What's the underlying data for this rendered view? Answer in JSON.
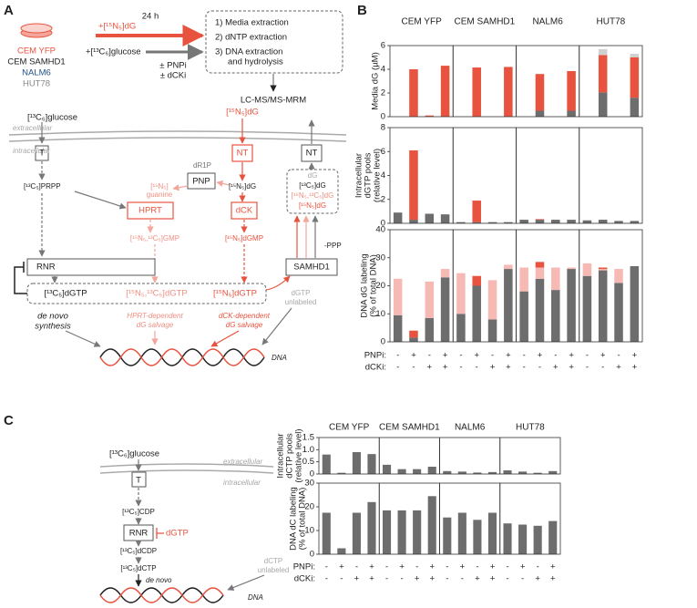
{
  "panel_a": {
    "label": "A",
    "labels": [
      "CEM YFP",
      "CEM SAMHD1",
      "NALM6",
      "HUT78",
      "+[¹⁵N₅]dG",
      "+[¹³C₆]glucose",
      "24 h",
      "± PNPi",
      "± dCKi",
      "1) Media extraction",
      "2) dNTP extraction",
      "3) DNA extraction",
      "and hydrolysis",
      "LC-MS/MS-MRM",
      "[¹³C₆]glucose",
      "[¹⁵N₅]dG",
      "extracellular",
      "intracellular",
      "T",
      "NT",
      "NT",
      "[¹³C₅]PRPP",
      "dR1P",
      "PNP",
      "[¹⁵N₅]",
      "guanine",
      "HPRT",
      "[¹⁵N₅]dG",
      "dCK",
      "dG",
      "[¹³C₅]dG",
      "[¹⁵N₅,¹³C₅]dG",
      "[¹⁵N₅]dG",
      "[¹⁵N₅,¹³C₅]GMP",
      "[¹⁵N₅]dGMP",
      "RNR",
      "SAMHD1",
      "-PPP",
      "[¹³C₅]dGTP",
      "[¹⁵N₅,¹³C₅]dGTP",
      "[¹⁵N₅]dGTP",
      "dGTP",
      "unlabeled",
      "de novo",
      "synthesis",
      "HPRT-dependent",
      "dG salvage",
      "dCK-dependent",
      "dG salvage",
      "DNA"
    ]
  },
  "panel_b": {
    "label": "B",
    "columns": [
      {
        "name": "CEM YFP",
        "color": "#e8533f"
      },
      {
        "name": "CEM SAMHD1",
        "color": "#333333"
      },
      {
        "name": "NALM6",
        "color": "#1f4e8c"
      },
      {
        "name": "HUT78",
        "color": "#888888"
      }
    ],
    "condition_names": [
      "PNPi:",
      "dCKi:"
    ],
    "conditions": [
      [
        "-",
        "+",
        "-",
        "+"
      ],
      [
        "-",
        "-",
        "+",
        "+"
      ]
    ]
  },
  "panel_c": {
    "label": "C",
    "labels": [
      "[¹³C₆]glucose",
      "extracellular",
      "intracellular",
      "T",
      "[¹³C₅]CDP",
      "RNR",
      "dGTP",
      "[¹³C₅]dCDP",
      "[¹³C₅]dCTP",
      "de novo",
      "dCTP",
      "unlabeled",
      "DNA"
    ],
    "columns": [
      {
        "name": "CEM YFP",
        "color": "#e8533f"
      },
      {
        "name": "CEM SAMHD1",
        "color": "#333333"
      },
      {
        "name": "NALM6",
        "color": "#1f4e8c"
      },
      {
        "name": "HUT78",
        "color": "#888888"
      }
    ],
    "condition_names": [
      "PNPi:",
      "dCKi:"
    ],
    "conditions": [
      [
        "-",
        "+",
        "-",
        "+"
      ],
      [
        "-",
        "-",
        "+",
        "+"
      ]
    ]
  },
  "chart_data": [
    {
      "type": "bar",
      "stacked": true,
      "ylabel": [
        "Media dG (µM)"
      ],
      "ylim": [
        0,
        6
      ],
      "yticks": [
        0,
        2,
        4,
        6
      ],
      "facets": [
        {
          "series": [
            {
              "color": "#6d6d6d",
              "values": [
                0,
                0,
                0,
                0
              ]
            },
            {
              "color": "#e8533f",
              "values": [
                0,
                4.0,
                0.1,
                4.3
              ]
            }
          ]
        },
        {
          "series": [
            {
              "color": "#6d6d6d",
              "values": [
                0,
                0,
                0,
                0
              ]
            },
            {
              "color": "#e8533f",
              "values": [
                0,
                4.15,
                0,
                4.2
              ]
            }
          ]
        },
        {
          "series": [
            {
              "color": "#6d6d6d",
              "values": [
                0,
                0.5,
                0,
                0.5
              ]
            },
            {
              "color": "#e8533f",
              "values": [
                0,
                3.1,
                0,
                3.35
              ]
            }
          ]
        },
        {
          "series": [
            {
              "color": "#6d6d6d",
              "values": [
                0,
                2.05,
                0,
                1.6
              ]
            },
            {
              "color": "#e8533f",
              "values": [
                0,
                3.15,
                0,
                3.4
              ]
            },
            {
              "color": "#d0d0d0",
              "values": [
                0,
                0.5,
                0,
                0.3
              ]
            }
          ]
        }
      ]
    },
    {
      "type": "bar",
      "stacked": true,
      "ylabel": [
        "Intracellular",
        "dGTP pools",
        "(relative level)"
      ],
      "ylim": [
        0,
        8
      ],
      "yticks": [
        0,
        2,
        4,
        6,
        8
      ],
      "facets": [
        {
          "series": [
            {
              "color": "#6d6d6d",
              "values": [
                0.9,
                0.3,
                0.8,
                0.75
              ]
            },
            {
              "color": "#e8533f",
              "values": [
                0,
                5.8,
                0,
                0
              ]
            }
          ]
        },
        {
          "series": [
            {
              "color": "#6d6d6d",
              "values": [
                0.1,
                0.1,
                0.1,
                0.1
              ]
            },
            {
              "color": "#e8533f",
              "values": [
                0,
                1.8,
                0,
                0
              ]
            }
          ]
        },
        {
          "series": [
            {
              "color": "#6d6d6d",
              "values": [
                0.3,
                0.3,
                0.3,
                0.3
              ]
            },
            {
              "color": "#e8533f",
              "values": [
                0,
                0.05,
                0,
                0
              ]
            }
          ]
        },
        {
          "series": [
            {
              "color": "#6d6d6d",
              "values": [
                0.25,
                0.3,
                0.2,
                0.2
              ]
            },
            {
              "color": "#e8533f",
              "values": [
                0,
                0,
                0,
                0
              ]
            }
          ]
        }
      ]
    },
    {
      "type": "bar",
      "stacked": true,
      "ylabel": [
        "DNA dG labeling",
        "(% of total DNA)"
      ],
      "ylim": [
        0,
        40
      ],
      "yticks": [
        0,
        10,
        20,
        30,
        40
      ],
      "facets": [
        {
          "series": [
            {
              "color": "#6d6d6d",
              "values": [
                9.5,
                1.5,
                8.5,
                23
              ]
            },
            {
              "color": "#f7b9b3",
              "values": [
                13,
                0,
                13,
                3
              ]
            },
            {
              "color": "#e8533f",
              "values": [
                0,
                2.5,
                0,
                0
              ]
            }
          ]
        },
        {
          "series": [
            {
              "color": "#6d6d6d",
              "values": [
                10,
                20,
                8,
                26
              ]
            },
            {
              "color": "#f7b9b3",
              "values": [
                14.5,
                0,
                14,
                1.5
              ]
            },
            {
              "color": "#e8533f",
              "values": [
                0,
                3.5,
                0,
                0
              ]
            }
          ]
        },
        {
          "series": [
            {
              "color": "#6d6d6d",
              "values": [
                18,
                22.5,
                18.5,
                26
              ]
            },
            {
              "color": "#f7b9b3",
              "values": [
                8.5,
                4,
                8,
                0.5
              ]
            },
            {
              "color": "#e8533f",
              "values": [
                0,
                2,
                0,
                0
              ]
            }
          ]
        },
        {
          "series": [
            {
              "color": "#6d6d6d",
              "values": [
                23.5,
                25.5,
                21,
                27
              ]
            },
            {
              "color": "#f7b9b3",
              "values": [
                4.5,
                0.5,
                5,
                0
              ]
            },
            {
              "color": "#e8533f",
              "values": [
                0,
                0.5,
                0,
                0
              ]
            }
          ]
        }
      ]
    },
    {
      "type": "bar",
      "stacked": true,
      "ylabel": [
        "Intracellular",
        "dCTP pools",
        "(relative level)"
      ],
      "ylim": [
        0,
        1.5
      ],
      "yticks": [
        0,
        0.5,
        {
          "value": 1,
          "label": "1.0"
        },
        1.5
      ],
      "facets": [
        {
          "series": [
            {
              "color": "#6d6d6d",
              "values": [
                0.8,
                0.05,
                0.9,
                0.82
              ]
            }
          ]
        },
        {
          "series": [
            {
              "color": "#6d6d6d",
              "values": [
                0.38,
                0.2,
                0.2,
                0.3
              ]
            }
          ]
        },
        {
          "series": [
            {
              "color": "#6d6d6d",
              "values": [
                0.12,
                0.1,
                0.06,
                0.08
              ]
            }
          ]
        },
        {
          "series": [
            {
              "color": "#6d6d6d",
              "values": [
                0.15,
                0.1,
                0.05,
                0.12
              ]
            }
          ]
        }
      ]
    },
    {
      "type": "bar",
      "stacked": true,
      "ylabel": [
        "DNA dC labeling",
        "(% of total DNA)"
      ],
      "ylim": [
        0,
        30
      ],
      "yticks": [
        0,
        10,
        20,
        30
      ],
      "facets": [
        {
          "series": [
            {
              "color": "#6d6d6d",
              "values": [
                17.5,
                2.5,
                17.5,
                22
              ]
            }
          ]
        },
        {
          "series": [
            {
              "color": "#6d6d6d",
              "values": [
                18.5,
                18.5,
                18.5,
                24.5
              ]
            }
          ]
        },
        {
          "series": [
            {
              "color": "#6d6d6d",
              "values": [
                15.5,
                17.5,
                14.5,
                17.5
              ]
            }
          ]
        },
        {
          "series": [
            {
              "color": "#6d6d6d",
              "values": [
                13,
                12.5,
                12,
                14
              ]
            }
          ]
        }
      ]
    }
  ]
}
